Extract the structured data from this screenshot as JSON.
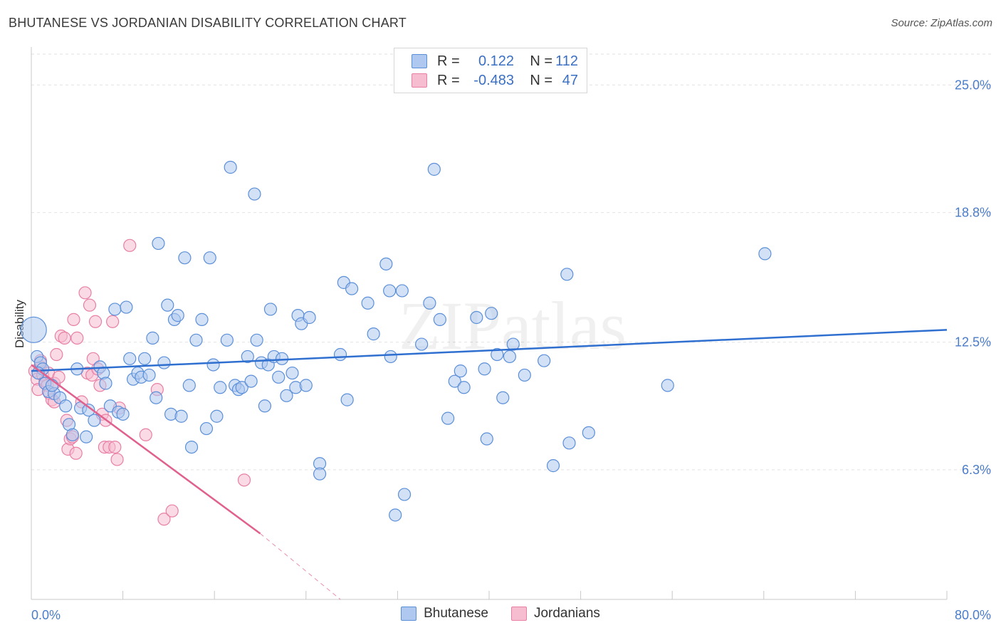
{
  "title": "BHUTANESE VS JORDANIAN DISABILITY CORRELATION CHART",
  "source": "Source: ZipAtlas.com",
  "watermark": "ZIPatlas",
  "colors": {
    "blue_fill": "#aec8ef",
    "blue_stroke": "#5b8fd8",
    "blue_line": "#2f6fd0",
    "pink_fill": "#f6bcd0",
    "pink_stroke": "#e87fa5",
    "pink_line": "#e0608e",
    "grid": "#e2e2e2",
    "tick_text": "#4a7cc9"
  },
  "legend": {
    "rows": [
      {
        "r_label": "R =",
        "r_value": "0.122",
        "n_label": "N =",
        "n_value": "112"
      },
      {
        "r_label": "R =",
        "r_value": "-0.483",
        "n_label": "N =",
        "n_value": "47"
      }
    ]
  },
  "bottom_legend": [
    "Bhutanese",
    "Jordanians"
  ],
  "chart_data": {
    "type": "scatter",
    "title": "BHUTANESE VS JORDANIAN DISABILITY CORRELATION CHART",
    "xlabel": "",
    "ylabel": "Disability",
    "xlim": [
      0,
      80
    ],
    "ylim": [
      0,
      26.5
    ],
    "x_tick_labels": [
      "0.0%",
      "80.0%"
    ],
    "y_ticks": [
      6.3,
      12.5,
      18.8,
      25.0
    ],
    "y_tick_labels": [
      "6.3%",
      "12.5%",
      "18.8%",
      "25.0%"
    ],
    "grid": true,
    "legend_position": "top-center",
    "series": [
      {
        "name": "Bhutanese",
        "r": 0.122,
        "n": 112,
        "trend": {
          "x0": 0,
          "y0": 11.1,
          "x1": 80,
          "y1": 13.1
        },
        "points": [
          [
            0.2,
            13.1
          ],
          [
            0.5,
            11.8
          ],
          [
            0.8,
            11.5
          ],
          [
            1.0,
            11.2
          ],
          [
            1.2,
            10.5
          ],
          [
            1.5,
            10.1
          ],
          [
            2.0,
            10.0
          ],
          [
            2.5,
            9.8
          ],
          [
            3.0,
            9.4
          ],
          [
            3.3,
            8.5
          ],
          [
            3.6,
            8.0
          ],
          [
            4.0,
            11.2
          ],
          [
            4.3,
            9.3
          ],
          [
            4.8,
            7.9
          ],
          [
            5.0,
            9.2
          ],
          [
            5.5,
            8.7
          ],
          [
            6.0,
            11.3
          ],
          [
            6.3,
            11.0
          ],
          [
            6.5,
            10.5
          ],
          [
            6.9,
            9.4
          ],
          [
            7.3,
            14.1
          ],
          [
            7.6,
            9.1
          ],
          [
            8.0,
            9.0
          ],
          [
            8.3,
            14.2
          ],
          [
            8.6,
            11.7
          ],
          [
            8.9,
            10.7
          ],
          [
            9.3,
            11.0
          ],
          [
            9.6,
            10.8
          ],
          [
            9.9,
            11.7
          ],
          [
            10.3,
            10.9
          ],
          [
            10.6,
            12.7
          ],
          [
            10.9,
            9.8
          ],
          [
            11.1,
            17.3
          ],
          [
            11.6,
            11.5
          ],
          [
            11.9,
            14.3
          ],
          [
            12.2,
            9.0
          ],
          [
            12.5,
            13.6
          ],
          [
            12.8,
            13.8
          ],
          [
            13.1,
            8.9
          ],
          [
            13.4,
            16.6
          ],
          [
            13.8,
            10.4
          ],
          [
            14.0,
            7.4
          ],
          [
            14.4,
            12.6
          ],
          [
            14.9,
            13.6
          ],
          [
            15.3,
            8.3
          ],
          [
            15.6,
            16.6
          ],
          [
            15.9,
            11.4
          ],
          [
            16.2,
            8.9
          ],
          [
            16.5,
            10.3
          ],
          [
            17.1,
            12.6
          ],
          [
            17.4,
            21.0
          ],
          [
            17.8,
            10.4
          ],
          [
            18.1,
            10.2
          ],
          [
            18.4,
            10.3
          ],
          [
            18.9,
            11.8
          ],
          [
            19.2,
            10.6
          ],
          [
            19.5,
            19.7
          ],
          [
            19.7,
            12.6
          ],
          [
            20.1,
            11.5
          ],
          [
            20.4,
            9.4
          ],
          [
            20.7,
            11.4
          ],
          [
            20.9,
            14.1
          ],
          [
            21.2,
            11.8
          ],
          [
            21.6,
            10.8
          ],
          [
            21.9,
            11.7
          ],
          [
            22.3,
            9.9
          ],
          [
            22.8,
            11.0
          ],
          [
            23.1,
            10.3
          ],
          [
            23.3,
            13.8
          ],
          [
            23.6,
            13.4
          ],
          [
            24.0,
            10.4
          ],
          [
            24.3,
            13.7
          ],
          [
            25.2,
            6.6
          ],
          [
            25.2,
            6.1
          ],
          [
            27.0,
            11.9
          ],
          [
            27.3,
            15.4
          ],
          [
            27.6,
            9.7
          ],
          [
            28.0,
            15.1
          ],
          [
            29.4,
            14.4
          ],
          [
            29.9,
            12.9
          ],
          [
            31.0,
            16.3
          ],
          [
            31.3,
            15.0
          ],
          [
            31.4,
            11.8
          ],
          [
            32.4,
            15.0
          ],
          [
            32.6,
            5.1
          ],
          [
            31.8,
            4.1
          ],
          [
            34.1,
            12.4
          ],
          [
            34.8,
            14.4
          ],
          [
            35.2,
            20.9
          ],
          [
            35.7,
            13.6
          ],
          [
            36.4,
            8.8
          ],
          [
            37.0,
            10.6
          ],
          [
            37.5,
            11.1
          ],
          [
            37.8,
            10.3
          ],
          [
            38.9,
            13.7
          ],
          [
            39.6,
            11.2
          ],
          [
            39.8,
            7.8
          ],
          [
            40.2,
            13.9
          ],
          [
            40.7,
            11.9
          ],
          [
            41.2,
            9.8
          ],
          [
            41.8,
            11.8
          ],
          [
            42.1,
            12.4
          ],
          [
            43.1,
            10.9
          ],
          [
            44.8,
            11.6
          ],
          [
            45.6,
            6.5
          ],
          [
            46.8,
            15.8
          ],
          [
            47.0,
            7.6
          ],
          [
            48.7,
            8.1
          ],
          [
            55.6,
            10.4
          ],
          [
            64.1,
            16.8
          ],
          [
            0.6,
            11.0
          ],
          [
            1.8,
            10.4
          ]
        ]
      },
      {
        "name": "Jordanians",
        "r": -0.483,
        "n": 47,
        "trend": {
          "x0": 0,
          "y0": 11.4,
          "x1": 20,
          "y1": 3.2,
          "dash_to_x": 27,
          "dash_to_y": 0
        },
        "points": [
          [
            0.3,
            11.1
          ],
          [
            0.5,
            10.7
          ],
          [
            0.6,
            10.2
          ],
          [
            0.8,
            11.3
          ],
          [
            1.0,
            10.9
          ],
          [
            1.2,
            10.6
          ],
          [
            1.4,
            10.4
          ],
          [
            1.5,
            11.0
          ],
          [
            1.6,
            10.0
          ],
          [
            1.8,
            9.7
          ],
          [
            2.0,
            10.5
          ],
          [
            2.0,
            9.6
          ],
          [
            2.2,
            11.9
          ],
          [
            2.4,
            10.8
          ],
          [
            2.6,
            12.8
          ],
          [
            2.9,
            12.7
          ],
          [
            3.1,
            8.7
          ],
          [
            3.2,
            7.3
          ],
          [
            3.4,
            7.8
          ],
          [
            3.6,
            7.9
          ],
          [
            3.7,
            13.6
          ],
          [
            3.9,
            7.1
          ],
          [
            4.0,
            12.7
          ],
          [
            4.4,
            9.6
          ],
          [
            4.7,
            14.9
          ],
          [
            4.9,
            11.0
          ],
          [
            5.1,
            14.3
          ],
          [
            5.3,
            10.9
          ],
          [
            5.4,
            11.7
          ],
          [
            5.6,
            13.5
          ],
          [
            5.8,
            11.2
          ],
          [
            6.0,
            10.4
          ],
          [
            6.2,
            9.0
          ],
          [
            6.4,
            7.4
          ],
          [
            6.5,
            8.7
          ],
          [
            6.8,
            7.4
          ],
          [
            7.1,
            13.5
          ],
          [
            7.3,
            7.4
          ],
          [
            7.5,
            6.8
          ],
          [
            7.7,
            9.3
          ],
          [
            8.6,
            17.2
          ],
          [
            10.0,
            8.0
          ],
          [
            11.0,
            10.2
          ],
          [
            11.6,
            3.9
          ],
          [
            12.3,
            4.3
          ],
          [
            18.6,
            5.8
          ],
          [
            0.8,
            11.6
          ]
        ]
      }
    ]
  }
}
